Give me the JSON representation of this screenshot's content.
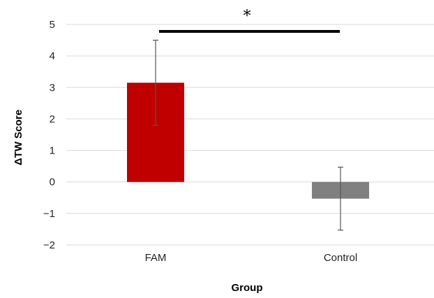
{
  "chart_data": {
    "type": "bar",
    "title": "",
    "xlabel": "Group",
    "ylabel": "ΔTW Score",
    "categories": [
      "FAM",
      "Control"
    ],
    "values": [
      3.15,
      -0.53
    ],
    "error": [
      1.35,
      1.0
    ],
    "colors": [
      "#c00000",
      "#808080"
    ],
    "ylim": [
      -2,
      5
    ],
    "yticks": [
      5,
      4,
      3,
      2,
      1,
      0,
      -1,
      -2
    ],
    "ytick_labels": [
      "5",
      "4",
      "3",
      "2",
      "1",
      "0",
      "−1",
      "−2"
    ],
    "grid": true,
    "gridline_color": "#d9d9d9",
    "significance": {
      "label": "*",
      "between": [
        "FAM",
        "Control"
      ]
    }
  }
}
